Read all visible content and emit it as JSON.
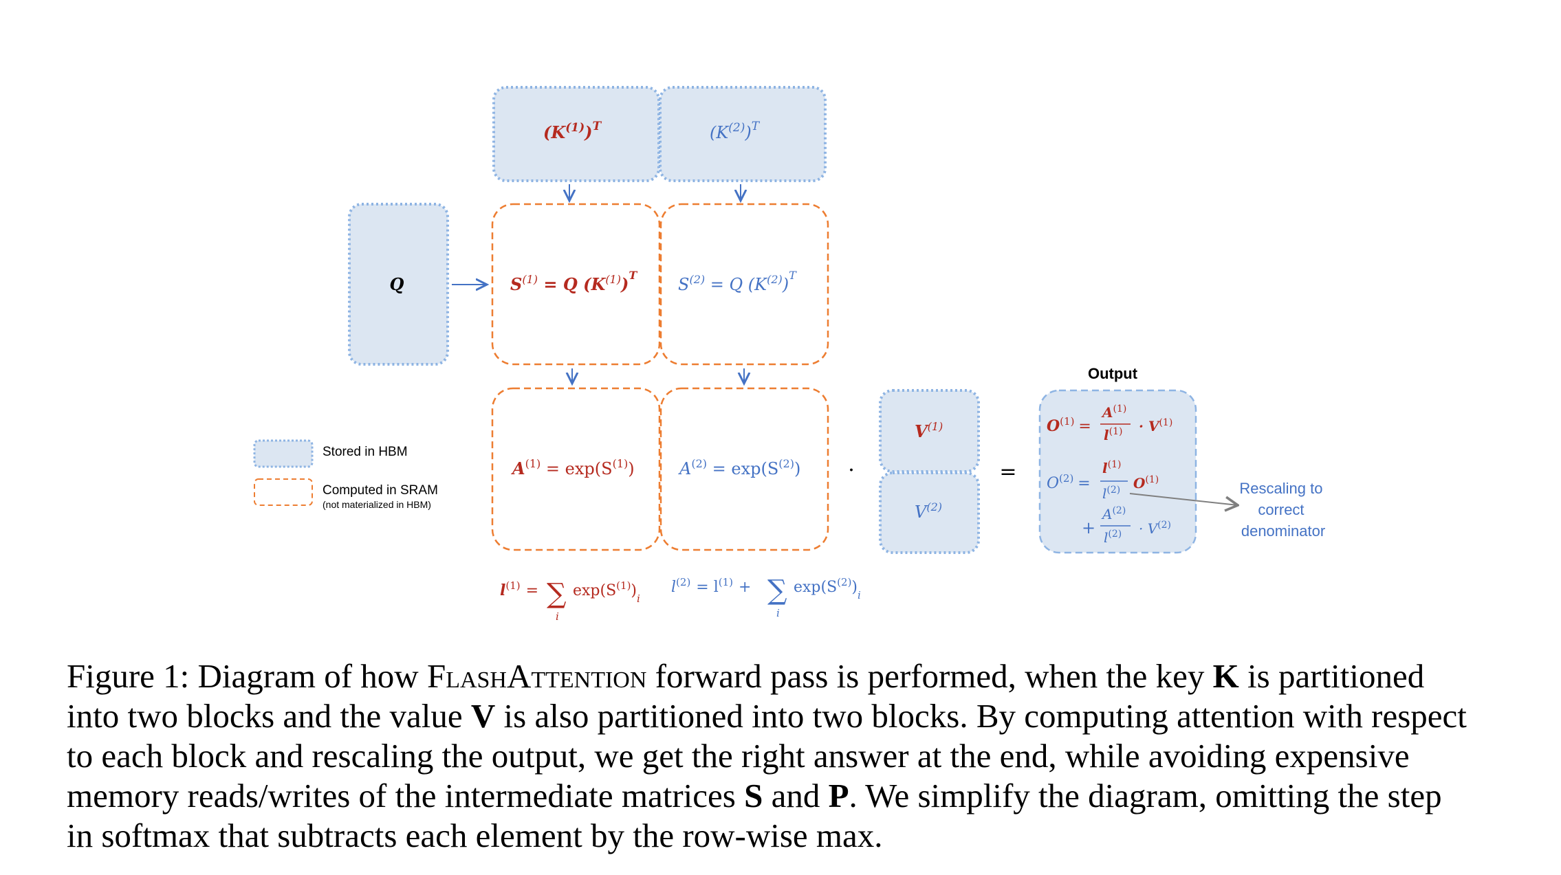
{
  "colors": {
    "red": "#b52a1f",
    "blue": "#4472c4",
    "hbm_fill": "#dce6f2",
    "hbm_border": "#8eb4e3",
    "sram_border": "#ed7d31",
    "arrow": "#4472c4",
    "gray_arrow": "#7f7f7f"
  },
  "legend": {
    "hbm_label": "Stored in HBM",
    "sram_label": "Computed in SRAM",
    "sram_note": "(not materialized in HBM)"
  },
  "blocks": {
    "k1": {
      "base": "(K",
      "sup": "(1)",
      "close": ")",
      "sup2": "T"
    },
    "k2": {
      "base": "(K",
      "sup": "(2)",
      "close": ")",
      "sup2": "T"
    },
    "q": "Q",
    "s1": {
      "lhs": "S",
      "sup": "(1)",
      "eq": " = Q (K",
      "sup_in": "(1)",
      "close": ")",
      "sup2": "T"
    },
    "s2": {
      "lhs": "S",
      "sup": "(2)",
      "eq": " = Q (K",
      "sup_in": "(2)",
      "close": ")",
      "sup2": "T"
    },
    "a1": {
      "lhs": "A",
      "sup": "(1)",
      "eq": " = exp(S",
      "sup_in": "(1)",
      "close": ")"
    },
    "a2": {
      "lhs": "A",
      "sup": "(2)",
      "eq": " = exp(S",
      "sup_in": "(2)",
      "close": ")"
    },
    "v1": {
      "base": "V",
      "sup": "(1)"
    },
    "v2": {
      "base": "V",
      "sup": "(2)"
    }
  },
  "operators": {
    "dot": "·",
    "equals": "="
  },
  "output": {
    "title": "Output",
    "o1": {
      "lhs": "O",
      "sup": "(1)",
      "eq": "=",
      "num": "A",
      "num_sup": "(1)",
      "den": "l",
      "den_sup": "(1)",
      "tail": "· V",
      "tail_sup": "(1)"
    },
    "o2": {
      "lhs": "O",
      "sup": "(2)",
      "eq": "=",
      "num": "l",
      "num_sup": "(1)",
      "den": "l",
      "den_sup": "(2)",
      "tail": "O",
      "tail_sup": "(1)"
    },
    "o2b": {
      "plus": "+",
      "num": "A",
      "num_sup": "(2)",
      "den": "l",
      "den_sup": "(2)",
      "tail": "· V",
      "tail_sup": "(2)"
    }
  },
  "annotation": {
    "line1": "Rescaling to",
    "line2": "correct",
    "line3": "denominator"
  },
  "sums": {
    "l1": {
      "lhs": "l",
      "sup": "(1)",
      "eq": "=",
      "sigma": "∑",
      "sub": "i",
      "expr": "exp(S",
      "expr_sup": "(1)",
      "close": ")",
      "close_sub": "i"
    },
    "l2": {
      "lhs": "l",
      "sup": "(2)",
      "eq": "= l",
      "eq_sup": "(1)",
      "plus": "+",
      "sigma": "∑",
      "sub": "i",
      "expr": "exp(S",
      "expr_sup": "(2)",
      "close": ")",
      "close_sub": "i"
    }
  },
  "caption": {
    "fig": "Figure 1: Diagram of how ",
    "flash": "FlashAttention",
    "p1": " forward pass is performed, when the key ",
    "K": "K",
    "p2": " is partitioned",
    "l2a": "into two blocks and the value ",
    "V": "V",
    "l2b": " is also partitioned into two blocks. By computing attention with respect",
    "l3": "to each block and rescaling the output, we get the right answer at the end, while avoiding expensive",
    "l4a": "memory reads/writes of the intermediate matrices ",
    "S": "S",
    "l4b": " and ",
    "P": "P",
    "l4c": ". We simplify the diagram, omitting the step",
    "l5": "in softmax that subtracts each element by the row-wise max."
  }
}
